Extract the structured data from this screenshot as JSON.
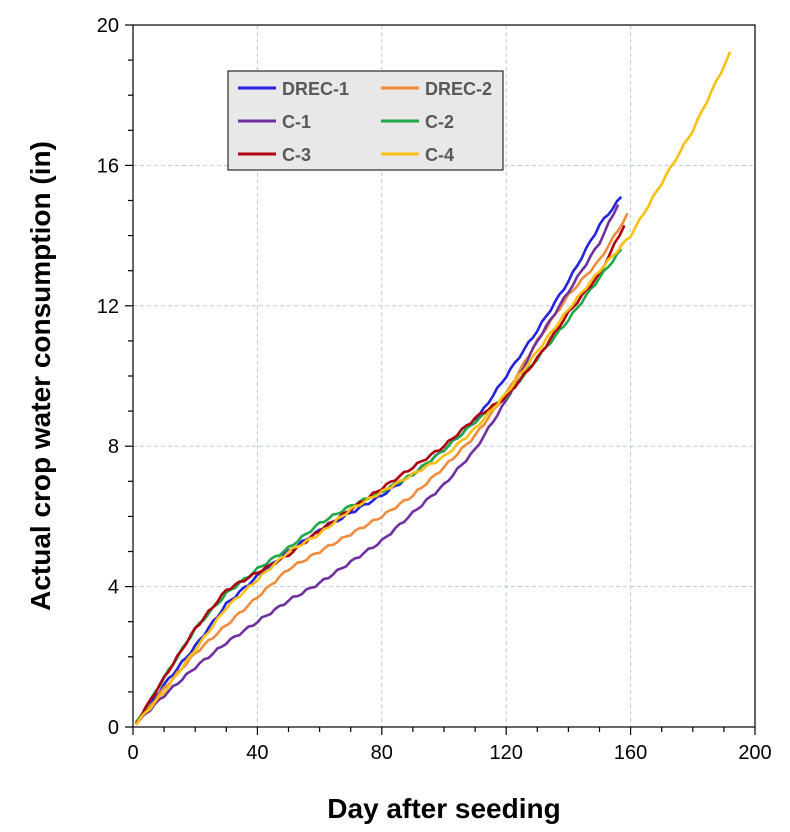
{
  "chart_data": {
    "type": "line",
    "title": "",
    "xlabel": "Day after seeding",
    "ylabel": "Actual crop water consumption (in)",
    "xlim": [
      0,
      200
    ],
    "ylim": [
      0,
      20
    ],
    "x_ticks": [
      "0",
      "40",
      "80",
      "120",
      "160",
      "200"
    ],
    "y_ticks": [
      "0",
      "4",
      "8",
      "12",
      "16",
      "20"
    ],
    "grid": true,
    "legend_position": "top-left",
    "series": [
      {
        "name": "DREC-1",
        "color": "#2323e0",
        "points": [
          [
            1,
            0.1
          ],
          [
            10,
            1.2
          ],
          [
            20,
            2.3
          ],
          [
            30,
            3.5
          ],
          [
            40,
            4.3
          ],
          [
            50,
            5.0
          ],
          [
            60,
            5.6
          ],
          [
            70,
            6.1
          ],
          [
            80,
            6.6
          ],
          [
            90,
            7.2
          ],
          [
            100,
            7.9
          ],
          [
            110,
            8.7
          ],
          [
            120,
            10.0
          ],
          [
            130,
            11.3
          ],
          [
            140,
            12.7
          ],
          [
            150,
            14.3
          ],
          [
            157,
            15.1
          ]
        ]
      },
      {
        "name": "DREC-2",
        "color": "#f08c3c",
        "points": [
          [
            1,
            0.1
          ],
          [
            10,
            1.1
          ],
          [
            20,
            2.1
          ],
          [
            30,
            2.9
          ],
          [
            40,
            3.7
          ],
          [
            50,
            4.5
          ],
          [
            60,
            5.0
          ],
          [
            70,
            5.5
          ],
          [
            80,
            6.0
          ],
          [
            90,
            6.6
          ],
          [
            100,
            7.4
          ],
          [
            110,
            8.3
          ],
          [
            120,
            9.5
          ],
          [
            130,
            11.0
          ],
          [
            140,
            12.3
          ],
          [
            150,
            13.3
          ],
          [
            159,
            14.6
          ]
        ]
      },
      {
        "name": "C-1",
        "color": "#7030a0",
        "points": [
          [
            1,
            0.1
          ],
          [
            10,
            0.9
          ],
          [
            20,
            1.7
          ],
          [
            30,
            2.4
          ],
          [
            40,
            3.0
          ],
          [
            50,
            3.6
          ],
          [
            60,
            4.1
          ],
          [
            70,
            4.7
          ],
          [
            80,
            5.3
          ],
          [
            90,
            6.1
          ],
          [
            100,
            6.9
          ],
          [
            110,
            7.9
          ],
          [
            120,
            9.3
          ],
          [
            130,
            11.0
          ],
          [
            140,
            12.4
          ],
          [
            150,
            13.8
          ],
          [
            156,
            14.9
          ]
        ]
      },
      {
        "name": "C-2",
        "color": "#1fa84a",
        "points": [
          [
            1,
            0.1
          ],
          [
            10,
            1.4
          ],
          [
            20,
            2.8
          ],
          [
            30,
            3.8
          ],
          [
            40,
            4.5
          ],
          [
            50,
            5.1
          ],
          [
            60,
            5.8
          ],
          [
            70,
            6.3
          ],
          [
            80,
            6.7
          ],
          [
            90,
            7.2
          ],
          [
            100,
            7.9
          ],
          [
            110,
            8.7
          ],
          [
            120,
            9.4
          ],
          [
            130,
            10.5
          ],
          [
            140,
            11.6
          ],
          [
            150,
            12.8
          ],
          [
            157,
            13.6
          ]
        ]
      },
      {
        "name": "C-3",
        "color": "#b00010",
        "points": [
          [
            1,
            0.1
          ],
          [
            10,
            1.4
          ],
          [
            20,
            2.8
          ],
          [
            30,
            3.9
          ],
          [
            40,
            4.4
          ],
          [
            50,
            4.9
          ],
          [
            60,
            5.6
          ],
          [
            70,
            6.2
          ],
          [
            80,
            6.8
          ],
          [
            90,
            7.4
          ],
          [
            100,
            8.0
          ],
          [
            110,
            8.8
          ],
          [
            120,
            9.4
          ],
          [
            130,
            10.5
          ],
          [
            140,
            11.8
          ],
          [
            150,
            12.9
          ],
          [
            158,
            14.3
          ]
        ]
      },
      {
        "name": "C-4",
        "color": "#fbbf16",
        "points": [
          [
            1,
            0.1
          ],
          [
            10,
            1.0
          ],
          [
            20,
            2.2
          ],
          [
            30,
            3.4
          ],
          [
            40,
            4.2
          ],
          [
            50,
            5.0
          ],
          [
            60,
            5.5
          ],
          [
            70,
            6.2
          ],
          [
            80,
            6.7
          ],
          [
            90,
            7.2
          ],
          [
            100,
            7.7
          ],
          [
            110,
            8.5
          ],
          [
            120,
            9.5
          ],
          [
            130,
            10.7
          ],
          [
            140,
            11.9
          ],
          [
            150,
            13.0
          ],
          [
            160,
            14.0
          ],
          [
            170,
            15.5
          ],
          [
            180,
            17.0
          ],
          [
            186,
            18.1
          ],
          [
            192,
            19.2
          ]
        ]
      }
    ]
  }
}
